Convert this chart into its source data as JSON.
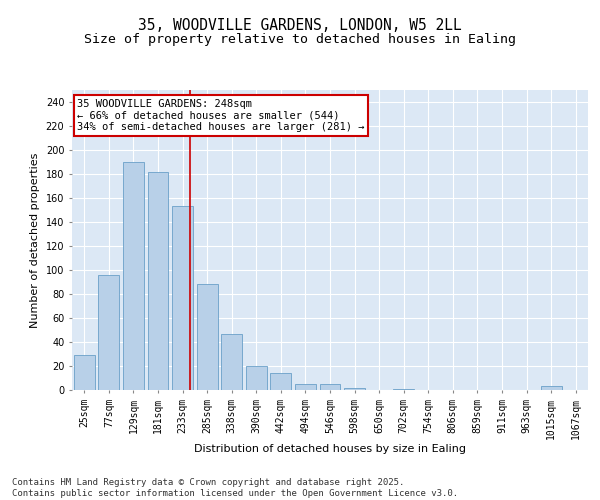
{
  "title1": "35, WOODVILLE GARDENS, LONDON, W5 2LL",
  "title2": "Size of property relative to detached houses in Ealing",
  "xlabel": "Distribution of detached houses by size in Ealing",
  "ylabel": "Number of detached properties",
  "categories": [
    "25sqm",
    "77sqm",
    "129sqm",
    "181sqm",
    "233sqm",
    "285sqm",
    "338sqm",
    "390sqm",
    "442sqm",
    "494sqm",
    "546sqm",
    "598sqm",
    "650sqm",
    "702sqm",
    "754sqm",
    "806sqm",
    "859sqm",
    "911sqm",
    "963sqm",
    "1015sqm",
    "1067sqm"
  ],
  "values": [
    29,
    96,
    190,
    182,
    153,
    88,
    47,
    20,
    14,
    5,
    5,
    2,
    0,
    1,
    0,
    0,
    0,
    0,
    0,
    3,
    0
  ],
  "bar_color": "#b8d0e8",
  "bar_edge_color": "#6aa0c8",
  "vline_color": "#cc0000",
  "annotation_text": "35 WOODVILLE GARDENS: 248sqm\n← 66% of detached houses are smaller (544)\n34% of semi-detached houses are larger (281) →",
  "annotation_box_color": "#cc0000",
  "ylim": [
    0,
    250
  ],
  "yticks": [
    0,
    20,
    40,
    60,
    80,
    100,
    120,
    140,
    160,
    180,
    200,
    220,
    240
  ],
  "bg_color": "#dce8f5",
  "grid_color": "#ffffff",
  "footer": "Contains HM Land Registry data © Crown copyright and database right 2025.\nContains public sector information licensed under the Open Government Licence v3.0.",
  "title_fontsize": 10.5,
  "subtitle_fontsize": 9.5,
  "axis_label_fontsize": 8,
  "tick_fontsize": 7,
  "footer_fontsize": 6.5,
  "annot_fontsize": 7.5
}
